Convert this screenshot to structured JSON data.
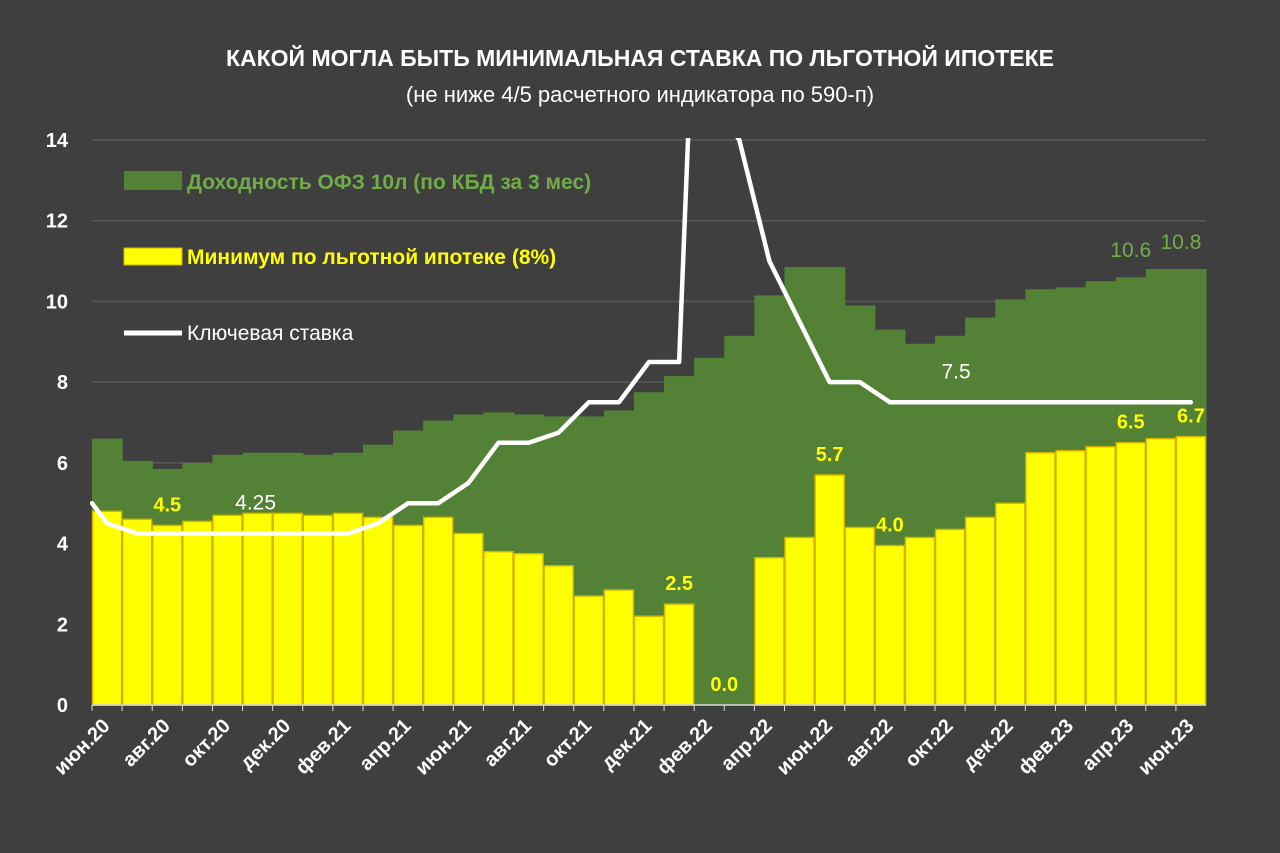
{
  "chart_data": {
    "type": "bar",
    "title": "КАКОЙ МОГЛА БЫТЬ МИНИМАЛЬНАЯ СТАВКА ПО ЛЬГОТНОЙ ИПОТЕКЕ",
    "subtitle": "(не ниже 4/5 расчетного индикатора по 590-п)",
    "xlabel": "",
    "ylabel": "",
    "ylim": [
      0,
      14
    ],
    "yticks": [
      "0",
      "2",
      "4",
      "6",
      "8",
      "10",
      "12",
      "14"
    ],
    "grid": true,
    "legend_position": "top-left",
    "categories": [
      "июн.20",
      "июл.20",
      "авг.20",
      "сен.20",
      "окт.20",
      "ноя.20",
      "дек.20",
      "янв.21",
      "фев.21",
      "мар.21",
      "апр.21",
      "май.21",
      "июн.21",
      "июл.21",
      "авг.21",
      "сен.21",
      "окт.21",
      "ноя.21",
      "дек.21",
      "янв.22",
      "фев.22",
      "мар.22",
      "апр.22",
      "май.22",
      "июн.22",
      "июл.22",
      "авг.22",
      "сен.22",
      "окт.22",
      "ноя.22",
      "дек.22",
      "янв.23",
      "фев.23",
      "мар.23",
      "апр.23",
      "май.23",
      "июн.23"
    ],
    "x_tick_labels": [
      "июн.20",
      "",
      "авг.20",
      "",
      "окт.20",
      "",
      "дек.20",
      "",
      "фев.21",
      "",
      "апр.21",
      "",
      "июн.21",
      "",
      "авг.21",
      "",
      "окт.21",
      "",
      "дек.21",
      "",
      "фев.22",
      "",
      "апр.22",
      "",
      "июн.22",
      "",
      "авг.22",
      "",
      "окт.22",
      "",
      "дек.22",
      "",
      "фев.23",
      "",
      "апр.23",
      "",
      "июн.23"
    ],
    "series": [
      {
        "name": "Доходность ОФЗ 10л (по КБД за 3 мес)",
        "type": "area-step",
        "color": "#538135",
        "values": [
          6.6,
          6.05,
          5.85,
          6.0,
          6.2,
          6.25,
          6.25,
          6.2,
          6.25,
          6.45,
          6.8,
          7.05,
          7.2,
          7.25,
          7.2,
          7.15,
          7.15,
          7.3,
          7.75,
          8.15,
          8.6,
          9.15,
          10.15,
          10.85,
          10.85,
          9.9,
          9.3,
          8.95,
          9.15,
          9.6,
          10.05,
          10.3,
          10.35,
          10.5,
          10.6,
          10.8,
          10.8
        ]
      },
      {
        "name": "Минимум по льготной ипотеке (8%)",
        "type": "bar",
        "color": "#ffff00",
        "values": [
          4.8,
          4.6,
          4.45,
          4.55,
          4.7,
          4.75,
          4.75,
          4.7,
          4.75,
          4.65,
          4.45,
          4.65,
          4.25,
          3.8,
          3.75,
          3.45,
          2.7,
          2.85,
          2.2,
          2.5,
          0.0,
          0.0,
          3.65,
          4.15,
          5.7,
          4.4,
          3.95,
          4.15,
          4.35,
          4.65,
          5.0,
          6.25,
          6.3,
          6.4,
          6.5,
          6.6,
          6.65
        ]
      },
      {
        "name": "Ключевая ставка",
        "type": "line",
        "color": "#ffffff",
        "x": [
          -0.5,
          0,
          1,
          2,
          3,
          4,
          5,
          6,
          7,
          8,
          9,
          10,
          11,
          12,
          13,
          14,
          15,
          16,
          17,
          18,
          19,
          19.35,
          20.1,
          21,
          22,
          23,
          24,
          25,
          26,
          27,
          28,
          29,
          30,
          31,
          32,
          33,
          34,
          35,
          36
        ],
        "values": [
          5.0,
          4.5,
          4.25,
          4.25,
          4.25,
          4.25,
          4.25,
          4.25,
          4.25,
          4.25,
          4.5,
          5.0,
          5.0,
          5.5,
          6.5,
          6.5,
          6.75,
          7.5,
          7.5,
          8.5,
          8.5,
          15.0,
          15.0,
          14.0,
          11.0,
          9.5,
          8.0,
          8.0,
          7.5,
          7.5,
          7.5,
          7.5,
          7.5,
          7.5,
          7.5,
          7.5,
          7.5,
          7.5,
          7.5
        ]
      }
    ],
    "bar_labels": [
      {
        "text": "4.5",
        "index": 2,
        "value": 4.45
      },
      {
        "text": "2.5",
        "index": 19,
        "value": 2.5
      },
      {
        "text": "0.0",
        "index": 20.5,
        "value": 0.0
      },
      {
        "text": "5.7",
        "index": 24,
        "value": 5.7
      },
      {
        "text": "4.0",
        "index": 26,
        "value": 3.95
      },
      {
        "text": "6.5",
        "index": 34,
        "value": 6.5
      },
      {
        "text": "6.7",
        "index": 36,
        "value": 6.65
      }
    ],
    "area_labels": [
      {
        "text": "10.6",
        "index": 34,
        "value": 10.6
      },
      {
        "text": "10.8",
        "index": 36,
        "value": 10.8
      }
    ],
    "line_labels": [
      {
        "text": "4.25",
        "index": 5,
        "value": 4.25
      },
      {
        "text": "7.5",
        "index": 28,
        "value": 7.5
      }
    ]
  },
  "colors": {
    "background": "#3f3f3f",
    "grid": "#595959",
    "axis_text": "#ffffff",
    "area": "#538135",
    "area_label": "#70ad47",
    "bar": "#ffff00",
    "bar_border": "#d4b400",
    "line": "#ffffff"
  }
}
